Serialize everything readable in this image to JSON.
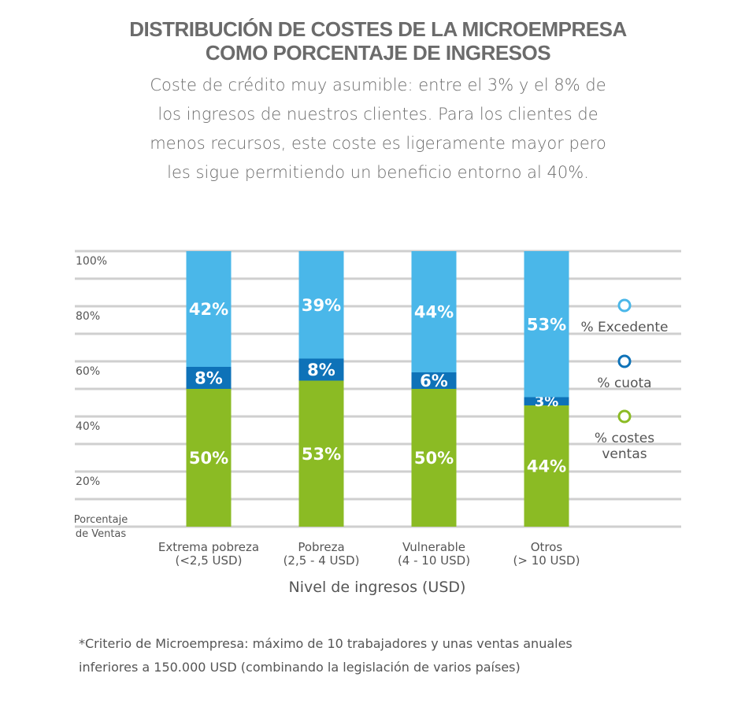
{
  "title_lines": [
    "DISTRIBUCIÓN DE COSTES DE LA MICROEMPRESA",
    "COMO PORCENTAJE DE INGRESOS"
  ],
  "subtitle": "Coste de crédito muy asumible: entre el 3% y el 8% de los ingresos de nuestros clientes. Para los clientes de menos recursos, este coste es ligeramente mayor pero les sigue permitiendo un beneficio entorno al 40%.",
  "footnote_lines": [
    "*Criterio de Microempresa: máximo de 10 trabajadores y unas ventas anuales",
    "inferiores a 150.000 USD (combinando la legislación de varios países)"
  ],
  "colors": {
    "costes": "#8bbb24",
    "cuota": "#0e72b8",
    "excedente": "#4ab7e9",
    "grid": "#cfcfcf",
    "text": "#555555"
  },
  "chart_data": {
    "type": "bar",
    "stacked": true,
    "xlabel": "Nivel de ingresos (USD)",
    "ylabel_lines": [
      "Porcentaje",
      "de Ventas"
    ],
    "ylim": [
      0,
      100
    ],
    "yticks": [
      "20%",
      "40%",
      "60%",
      "80%",
      "100%"
    ],
    "ytick_values": [
      20,
      40,
      60,
      80,
      100
    ],
    "grid": true,
    "legend_position": "right",
    "categories": [
      [
        "Extrema pobreza",
        "(<2,5 USD)"
      ],
      [
        "Pobreza",
        "(2,5 - 4 USD)"
      ],
      [
        "Vulnerable",
        "(4 - 10 USD)"
      ],
      [
        "Otros",
        "(> 10 USD)"
      ]
    ],
    "series": [
      {
        "name": "% costes ventas",
        "name_lines": [
          "% costes",
          "ventas"
        ],
        "color_key": "costes",
        "values": [
          50,
          53,
          50,
          44
        ],
        "labels": [
          "50%",
          "53%",
          "50%",
          "44%"
        ]
      },
      {
        "name": "% cuota",
        "name_lines": [
          "% cuota"
        ],
        "color_key": "cuota",
        "values": [
          8,
          8,
          6,
          3
        ],
        "labels": [
          "8%",
          "8%",
          "6%",
          "3%"
        ]
      },
      {
        "name": "% Excedente",
        "name_lines": [
          "% Excedente"
        ],
        "color_key": "excedente",
        "values": [
          42,
          39,
          44,
          53
        ],
        "labels": [
          "42%",
          "39%",
          "44%",
          "53%"
        ]
      }
    ]
  }
}
